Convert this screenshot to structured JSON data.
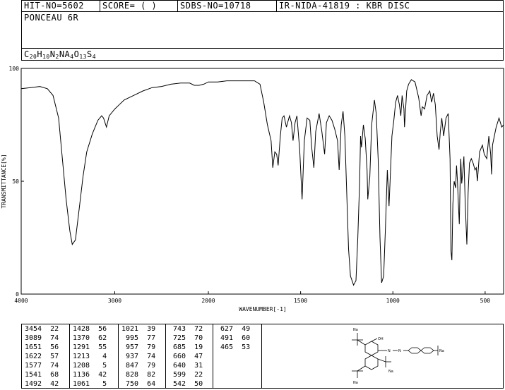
{
  "header": {
    "hit_no": "HIT-NO=5602",
    "score": "SCORE=  (   )",
    "sdbs_no": "SDBS-NO=10718",
    "ir_info": "IR-NIDA-41819 : KBR DISC"
  },
  "compound": {
    "name": "PONCEAU 6R",
    "formula_parts": [
      "C",
      "20",
      "H",
      "10",
      "N",
      "2",
      "NA",
      "4",
      "O",
      "13",
      "S",
      "4"
    ]
  },
  "chart_data": {
    "type": "line",
    "title": "",
    "xlabel": "WAVENUMBER[-1]",
    "ylabel": "TRANSMITTANCE[%]",
    "xlim": [
      4000,
      400
    ],
    "ylim": [
      0,
      100
    ],
    "x_ticks": [
      4000,
      3000,
      2000,
      1500,
      1000,
      500
    ],
    "y_ticks": [
      0,
      50,
      100
    ],
    "grid": false,
    "series": [
      {
        "points": [
          [
            4000,
            91
          ],
          [
            3900,
            91.5
          ],
          [
            3800,
            92
          ],
          [
            3720,
            91
          ],
          [
            3660,
            88
          ],
          [
            3600,
            78
          ],
          [
            3560,
            60
          ],
          [
            3520,
            42
          ],
          [
            3480,
            28
          ],
          [
            3454,
            22
          ],
          [
            3420,
            24
          ],
          [
            3380,
            38
          ],
          [
            3340,
            52
          ],
          [
            3300,
            63
          ],
          [
            3240,
            71
          ],
          [
            3180,
            77
          ],
          [
            3140,
            79
          ],
          [
            3120,
            78
          ],
          [
            3089,
            74
          ],
          [
            3060,
            79
          ],
          [
            3000,
            82
          ],
          [
            2950,
            84
          ],
          [
            2900,
            86
          ],
          [
            2800,
            88
          ],
          [
            2700,
            90
          ],
          [
            2600,
            91.5
          ],
          [
            2500,
            92
          ],
          [
            2400,
            93
          ],
          [
            2300,
            93.5
          ],
          [
            2200,
            93.5
          ],
          [
            2150,
            92.5
          ],
          [
            2100,
            92.5
          ],
          [
            2050,
            93
          ],
          [
            2000,
            94
          ],
          [
            1950,
            94
          ],
          [
            1900,
            94.5
          ],
          [
            1850,
            94.5
          ],
          [
            1800,
            94.5
          ],
          [
            1750,
            94.5
          ],
          [
            1720,
            93
          ],
          [
            1700,
            85
          ],
          [
            1680,
            75
          ],
          [
            1660,
            68
          ],
          [
            1651,
            56
          ],
          [
            1640,
            63
          ],
          [
            1630,
            62
          ],
          [
            1622,
            57
          ],
          [
            1610,
            70
          ],
          [
            1600,
            78
          ],
          [
            1590,
            79
          ],
          [
            1577,
            74
          ],
          [
            1560,
            79
          ],
          [
            1550,
            76
          ],
          [
            1541,
            68
          ],
          [
            1530,
            76
          ],
          [
            1520,
            79
          ],
          [
            1505,
            64
          ],
          [
            1492,
            42
          ],
          [
            1480,
            68
          ],
          [
            1465,
            78
          ],
          [
            1450,
            77
          ],
          [
            1440,
            65
          ],
          [
            1428,
            56
          ],
          [
            1418,
            72
          ],
          [
            1400,
            80
          ],
          [
            1385,
            72
          ],
          [
            1370,
            62
          ],
          [
            1360,
            76
          ],
          [
            1345,
            79
          ],
          [
            1330,
            77
          ],
          [
            1315,
            73
          ],
          [
            1300,
            68
          ],
          [
            1291,
            55
          ],
          [
            1280,
            75
          ],
          [
            1270,
            81
          ],
          [
            1260,
            70
          ],
          [
            1250,
            45
          ],
          [
            1240,
            20
          ],
          [
            1230,
            8
          ],
          [
            1213,
            4
          ],
          [
            1200,
            6
          ],
          [
            1190,
            25
          ],
          [
            1180,
            50
          ],
          [
            1175,
            70
          ],
          [
            1170,
            65
          ],
          [
            1160,
            75
          ],
          [
            1150,
            69
          ],
          [
            1140,
            55
          ],
          [
            1136,
            42
          ],
          [
            1125,
            52
          ],
          [
            1115,
            75
          ],
          [
            1100,
            86
          ],
          [
            1090,
            80
          ],
          [
            1080,
            60
          ],
          [
            1070,
            25
          ],
          [
            1061,
            5
          ],
          [
            1050,
            8
          ],
          [
            1040,
            30
          ],
          [
            1030,
            55
          ],
          [
            1021,
            39
          ],
          [
            1015,
            50
          ],
          [
            1005,
            70
          ],
          [
            995,
            77
          ],
          [
            985,
            85
          ],
          [
            975,
            88
          ],
          [
            965,
            84
          ],
          [
            957,
            79
          ],
          [
            950,
            88
          ],
          [
            940,
            82
          ],
          [
            937,
            74
          ],
          [
            925,
            90
          ],
          [
            915,
            93
          ],
          [
            900,
            95
          ],
          [
            880,
            94
          ],
          [
            860,
            87
          ],
          [
            847,
            79
          ],
          [
            840,
            83
          ],
          [
            828,
            82
          ],
          [
            815,
            88
          ],
          [
            800,
            90
          ],
          [
            790,
            85
          ],
          [
            780,
            89
          ],
          [
            770,
            84
          ],
          [
            760,
            70
          ],
          [
            750,
            64
          ],
          [
            743,
            72
          ],
          [
            735,
            78
          ],
          [
            725,
            70
          ],
          [
            712,
            78
          ],
          [
            700,
            80
          ],
          [
            690,
            60
          ],
          [
            685,
            19
          ],
          [
            680,
            15
          ],
          [
            675,
            40
          ],
          [
            668,
            50
          ],
          [
            660,
            47
          ],
          [
            655,
            57
          ],
          [
            650,
            50
          ],
          [
            645,
            40
          ],
          [
            640,
            31
          ],
          [
            635,
            52
          ],
          [
            632,
            60
          ],
          [
            627,
            49
          ],
          [
            620,
            55
          ],
          [
            615,
            61
          ],
          [
            608,
            40
          ],
          [
            599,
            22
          ],
          [
            592,
            45
          ],
          [
            585,
            58
          ],
          [
            575,
            60
          ],
          [
            565,
            58
          ],
          [
            555,
            55
          ],
          [
            548,
            56
          ],
          [
            542,
            50
          ],
          [
            530,
            63
          ],
          [
            515,
            66
          ],
          [
            505,
            62
          ],
          [
            491,
            60
          ],
          [
            480,
            70
          ],
          [
            470,
            62
          ],
          [
            465,
            53
          ],
          [
            460,
            66
          ],
          [
            450,
            70
          ],
          [
            440,
            74
          ],
          [
            425,
            78
          ],
          [
            410,
            74
          ],
          [
            400,
            75
          ]
        ]
      }
    ]
  },
  "peak_table": [
    [
      "3454  22",
      "3089  74",
      "1651  56",
      "1622  57",
      "1577  74",
      "1541  68",
      "1492  42"
    ],
    [
      "1428  56",
      "1370  62",
      "1291  55",
      "1213   4",
      "1208   5",
      "1136  42",
      "1061   5"
    ],
    [
      "1021  39",
      " 995  77",
      " 957  79",
      " 937  74",
      " 847  79",
      " 828  82",
      " 750  64"
    ],
    [
      " 743  72",
      " 725  70",
      " 685  19",
      " 660  47",
      " 640  31",
      " 599  22",
      " 542  50"
    ],
    [
      " 627  49",
      " 491  60",
      " 465  53"
    ]
  ],
  "structure_labels": {
    "na_top": "Na",
    "oh": "OH",
    "n1": "N",
    "n2": "N",
    "na_right": "Na",
    "na_mid": "Na",
    "na_bottom": "Na"
  }
}
